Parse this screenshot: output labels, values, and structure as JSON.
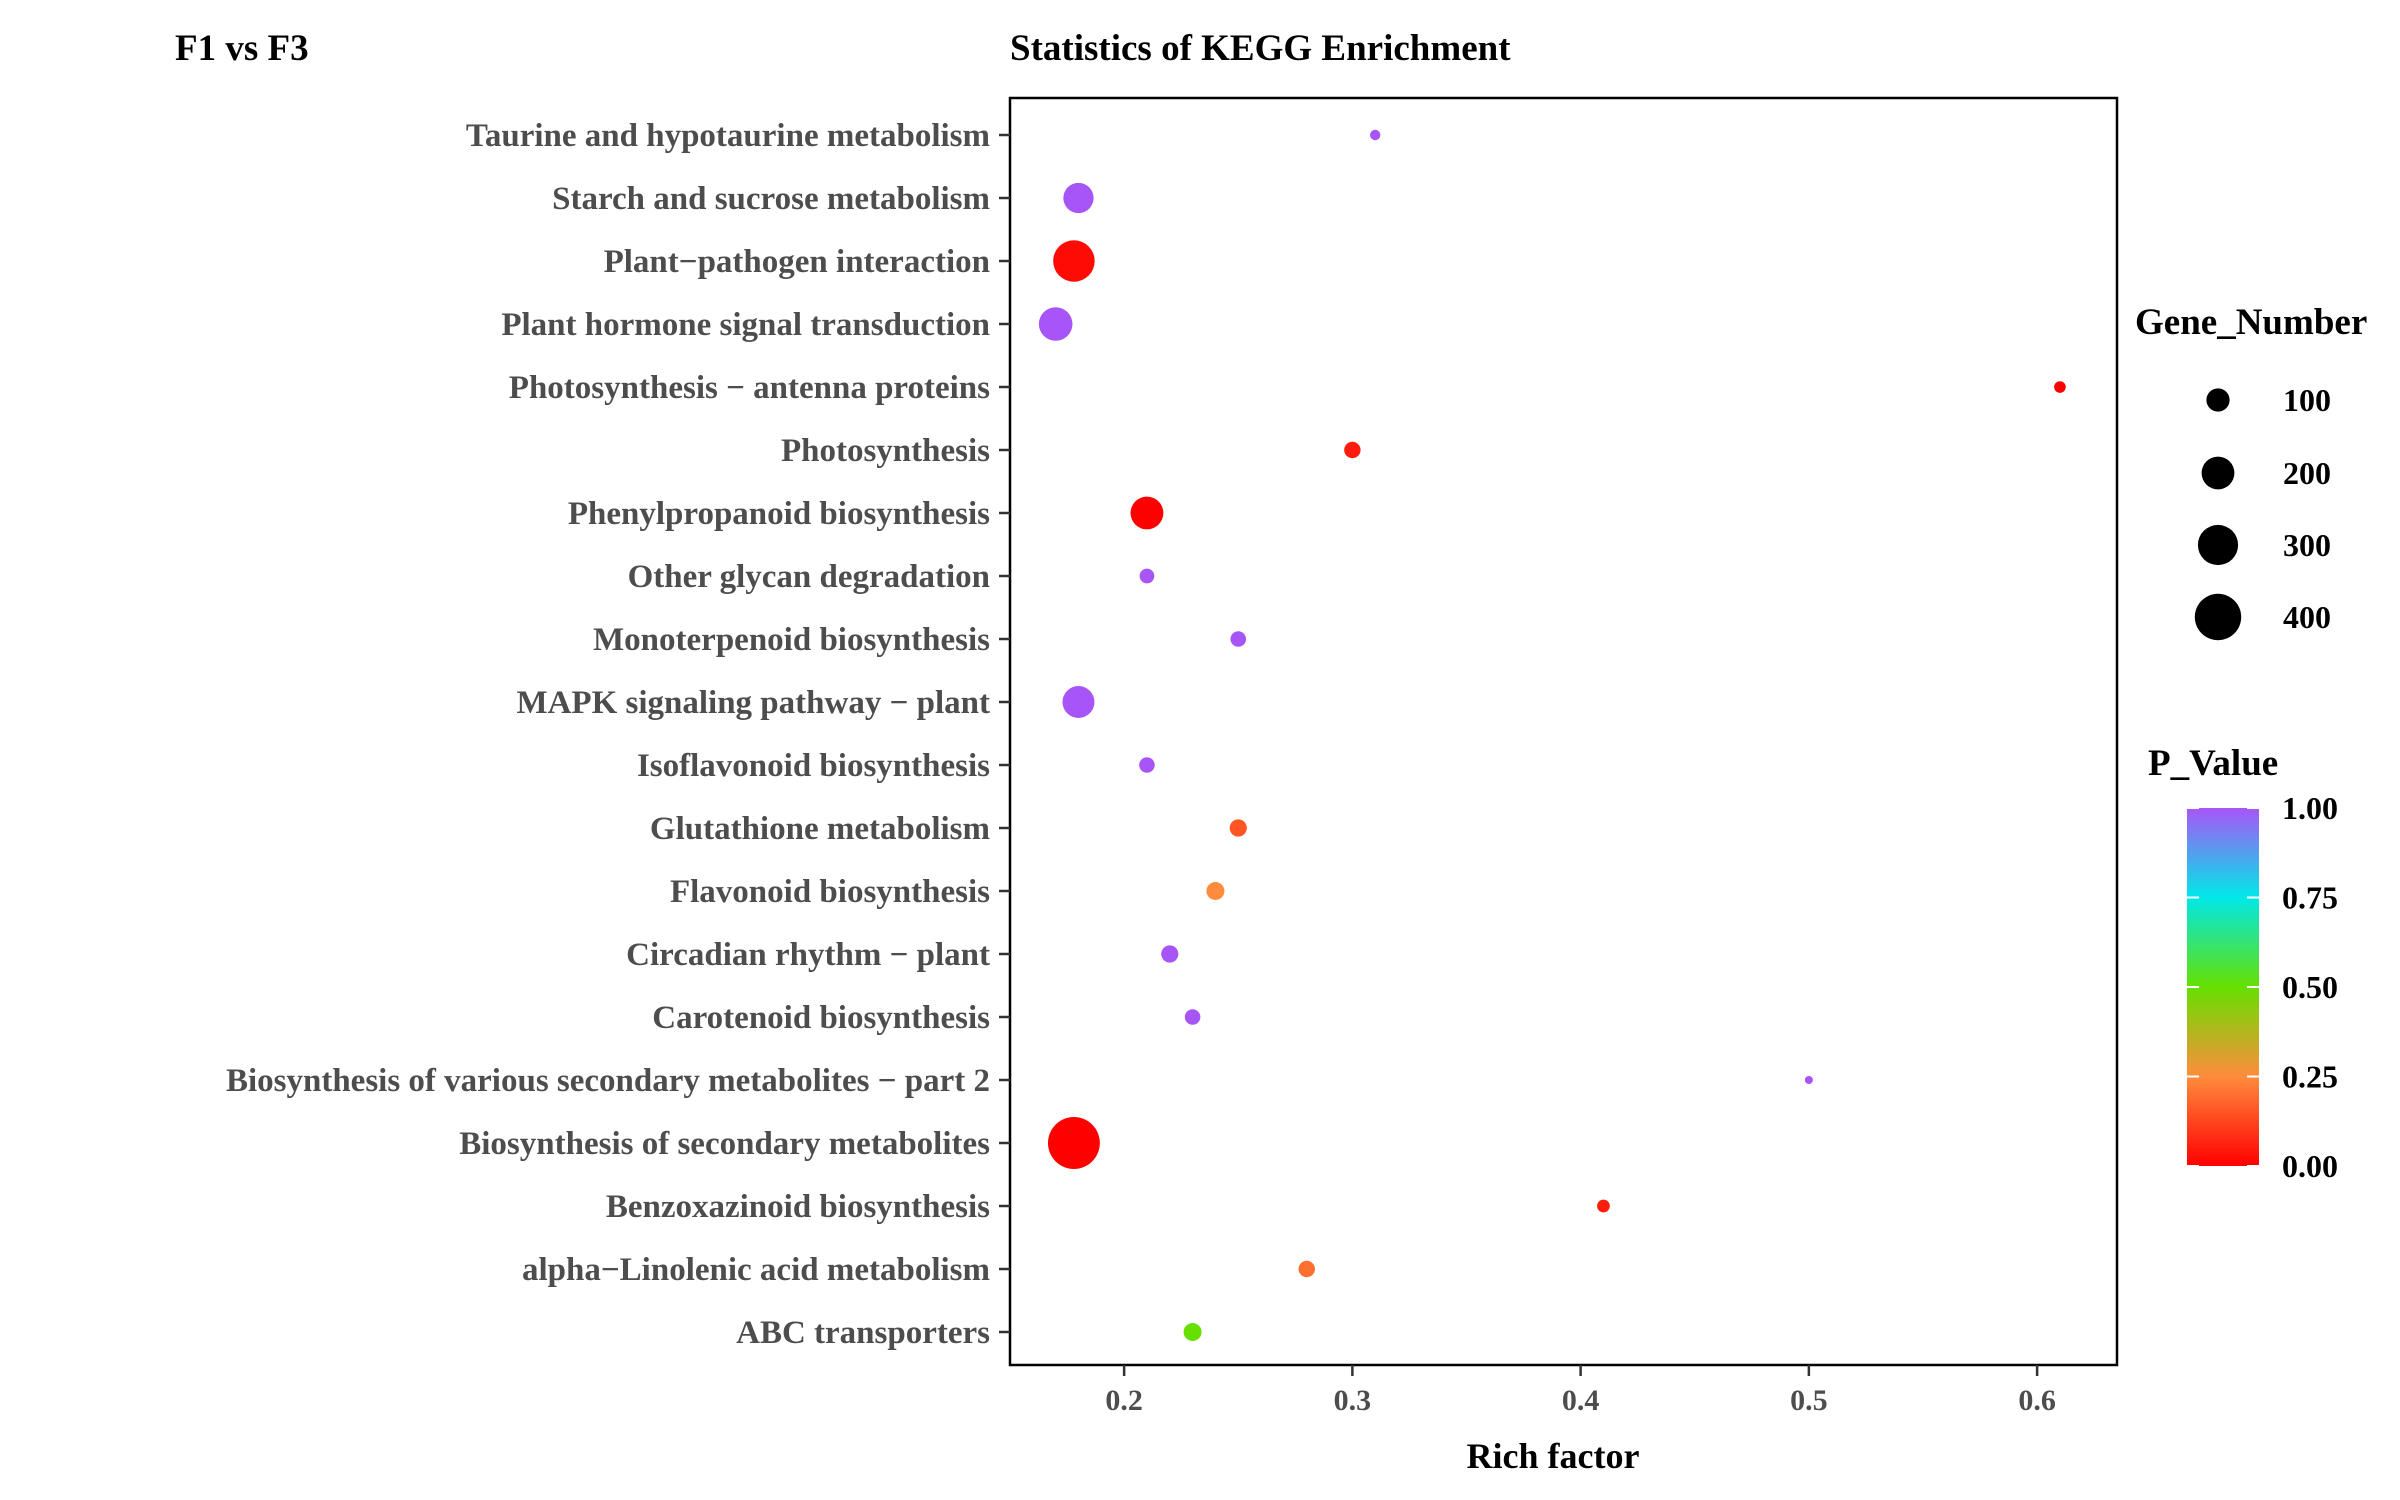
{
  "comparison_label": "F1 vs F3",
  "chart_data": {
    "type": "scatter",
    "title": "Statistics of KEGG Enrichment",
    "xlabel": "Rich factor",
    "ylabel": "",
    "xlim": [
      0.15,
      0.635
    ],
    "xticks": [
      0.2,
      0.3,
      0.4,
      0.5,
      0.6
    ],
    "xtick_labels": [
      "0.2",
      "0.3",
      "0.4",
      "0.5",
      "0.6"
    ],
    "grid": false,
    "legend_position": "right",
    "categories": [
      "Taurine and hypotaurine metabolism",
      "Starch and sucrose metabolism",
      "Plant−pathogen interaction",
      "Plant hormone signal transduction",
      "Photosynthesis − antenna proteins",
      "Photosynthesis",
      "Phenylpropanoid biosynthesis",
      "Other glycan degradation",
      "Monoterpenoid biosynthesis",
      "MAPK signaling pathway − plant",
      "Isoflavonoid biosynthesis",
      "Glutathione metabolism",
      "Flavonoid biosynthesis",
      "Circadian rhythm − plant",
      "Carotenoid biosynthesis",
      "Biosynthesis of various secondary metabolites − part 2",
      "Biosynthesis of secondary metabolites",
      "Benzoxazinoid biosynthesis",
      "alpha−Linolenic acid metabolism",
      "ABC transporters"
    ],
    "points": [
      {
        "pathway": "Taurine and hypotaurine metabolism",
        "rich_factor": 0.31,
        "gene_number": 20,
        "p_value": 1.0
      },
      {
        "pathway": "Starch and sucrose metabolism",
        "rich_factor": 0.18,
        "gene_number": 170,
        "p_value": 1.0
      },
      {
        "pathway": "Plant−pathogen interaction",
        "rich_factor": 0.178,
        "gene_number": 320,
        "p_value": 0.02
      },
      {
        "pathway": "Plant hormone signal transduction",
        "rich_factor": 0.17,
        "gene_number": 210,
        "p_value": 1.0
      },
      {
        "pathway": "Photosynthesis − antenna proteins",
        "rich_factor": 0.61,
        "gene_number": 25,
        "p_value": 0.0
      },
      {
        "pathway": "Photosynthesis",
        "rich_factor": 0.3,
        "gene_number": 50,
        "p_value": 0.05
      },
      {
        "pathway": "Phenylpropanoid biosynthesis",
        "rich_factor": 0.21,
        "gene_number": 200,
        "p_value": 0.0
      },
      {
        "pathway": "Other glycan degradation",
        "rich_factor": 0.21,
        "gene_number": 40,
        "p_value": 1.0
      },
      {
        "pathway": "Monoterpenoid biosynthesis",
        "rich_factor": 0.25,
        "gene_number": 45,
        "p_value": 1.0
      },
      {
        "pathway": "MAPK signaling pathway − plant",
        "rich_factor": 0.18,
        "gene_number": 190,
        "p_value": 1.0
      },
      {
        "pathway": "Isoflavonoid biosynthesis",
        "rich_factor": 0.21,
        "gene_number": 45,
        "p_value": 1.0
      },
      {
        "pathway": "Glutathione metabolism",
        "rich_factor": 0.25,
        "gene_number": 55,
        "p_value": 0.15
      },
      {
        "pathway": "Flavonoid biosynthesis",
        "rich_factor": 0.24,
        "gene_number": 60,
        "p_value": 0.25
      },
      {
        "pathway": "Circadian rhythm − plant",
        "rich_factor": 0.22,
        "gene_number": 55,
        "p_value": 1.0
      },
      {
        "pathway": "Carotenoid biosynthesis",
        "rich_factor": 0.23,
        "gene_number": 45,
        "p_value": 1.0
      },
      {
        "pathway": "Biosynthesis of various secondary metabolites − part 2",
        "rich_factor": 0.5,
        "gene_number": 12,
        "p_value": 1.0
      },
      {
        "pathway": "Biosynthesis of secondary metabolites",
        "rich_factor": 0.178,
        "gene_number": 500,
        "p_value": 0.0
      },
      {
        "pathway": "Benzoxazinoid biosynthesis",
        "rich_factor": 0.41,
        "gene_number": 30,
        "p_value": 0.05
      },
      {
        "pathway": "alpha−Linolenic acid metabolism",
        "rich_factor": 0.28,
        "gene_number": 50,
        "p_value": 0.2
      },
      {
        "pathway": "ABC transporters",
        "rich_factor": 0.23,
        "gene_number": 60,
        "p_value": 0.5
      }
    ],
    "size_legend": {
      "title": "Gene_Number",
      "values": [
        100,
        200,
        300,
        400
      ],
      "labels": [
        "100",
        "200",
        "300",
        "400"
      ]
    },
    "color_legend": {
      "title": "P_Value",
      "range": [
        0.0,
        1.0
      ],
      "tick_values": [
        1.0,
        0.75,
        0.5,
        0.25,
        0.0
      ],
      "tick_labels": [
        "1.00",
        "0.75",
        "0.50",
        "0.25",
        "0.00"
      ],
      "colors_low_to_high": [
        "#ff0000",
        "#ff8c3c",
        "#66e000",
        "#00e8e8",
        "#a855f7"
      ]
    }
  }
}
